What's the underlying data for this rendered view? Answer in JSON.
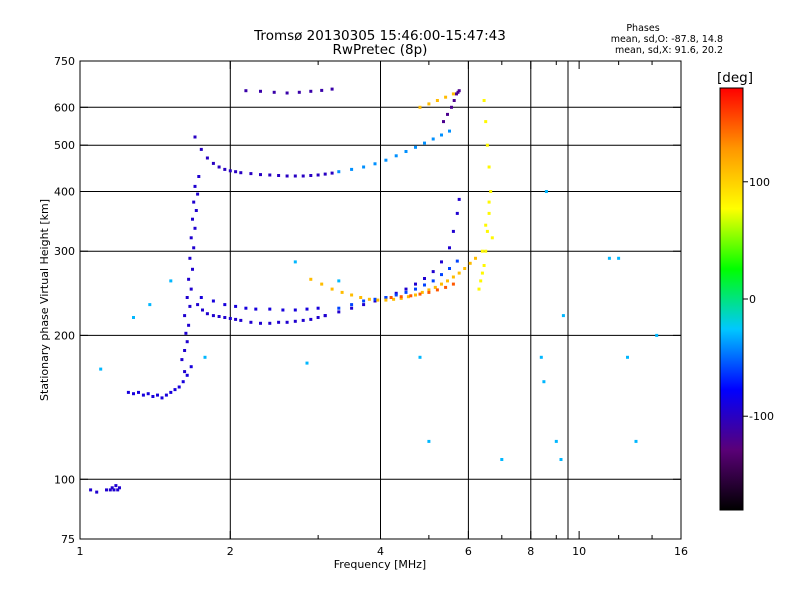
{
  "header": {
    "title_line1": "Tromsø 20130305 15:46:00-15:47:43",
    "title_line2": "RwPretec (8p)",
    "phases_title": "Phases",
    "phases_o": "mean, sd,O: -87.8, 14.8",
    "phases_x": "mean, sd,X:  91.6, 20.2"
  },
  "chart_data": {
    "type": "scatter",
    "xlabel": "Frequency [MHz]",
    "ylabel": "Stationary phase Virtual Height [km]",
    "xscale": "log",
    "yscale": "log",
    "xlim": [
      1,
      16
    ],
    "ylim": [
      75,
      750
    ],
    "x_ticks": [
      1,
      2,
      4,
      6,
      8,
      10,
      16
    ],
    "x_tick_labels": [
      "1",
      "2",
      "4",
      "6",
      "8",
      "10",
      "16"
    ],
    "x_minor_ticks": [
      3,
      5,
      7,
      9,
      12,
      14
    ],
    "y_ticks": [
      75,
      100,
      200,
      300,
      400,
      500,
      600,
      750
    ],
    "y_tick_labels": [
      "75",
      "100",
      "200",
      "300",
      "400",
      "500",
      "600",
      "750"
    ],
    "x_grid": [
      2,
      4,
      6,
      8,
      9.5
    ],
    "y_grid": [
      100,
      200,
      300,
      400,
      500,
      600
    ],
    "grid": true,
    "colorbar": {
      "label": "[deg]",
      "range": [
        -180,
        180
      ],
      "ticks": [
        100,
        0,
        -100
      ],
      "tick_labels": [
        "100",
        "0",
        "-100"
      ],
      "colors": [
        "#000000",
        "#5a0078",
        "#0000ff",
        "#00c8ff",
        "#00ff00",
        "#ffff00",
        "#ff9600",
        "#ff0000"
      ]
    },
    "series": [
      {
        "x": [
          1.05,
          1.08,
          1.13,
          1.15,
          1.16,
          1.17,
          1.18,
          1.19,
          1.2
        ],
        "y": [
          95,
          94,
          95,
          95,
          96,
          95,
          97,
          95,
          96
        ],
        "phase": -95
      },
      {
        "x": [
          1.25,
          1.28,
          1.31,
          1.34,
          1.37,
          1.4,
          1.43,
          1.46,
          1.49,
          1.52,
          1.55,
          1.58,
          1.61,
          1.64,
          1.67
        ],
        "y": [
          152,
          151,
          152,
          150,
          151,
          149,
          150,
          148,
          150,
          152,
          154,
          156,
          160,
          165,
          172
        ],
        "phase": -90
      },
      {
        "x": [
          1.62,
          1.6,
          1.62,
          1.64,
          1.63,
          1.65,
          1.62,
          1.66,
          1.64,
          1.67,
          1.65,
          1.68,
          1.66,
          1.69,
          1.67,
          1.7,
          1.68,
          1.71,
          1.69,
          1.72,
          1.7,
          1.73
        ],
        "y": [
          168,
          178,
          186,
          194,
          202,
          210,
          220,
          230,
          240,
          250,
          262,
          275,
          290,
          305,
          320,
          335,
          350,
          365,
          380,
          395,
          410,
          430
        ],
        "phase": -95
      },
      {
        "x": [
          1.72,
          1.76,
          1.8,
          1.85,
          1.9,
          1.95,
          2.0,
          2.05,
          2.1,
          2.2,
          2.3,
          2.4,
          2.5,
          2.6,
          2.7,
          2.8,
          2.9,
          3.0,
          3.1
        ],
        "y": [
          232,
          226,
          222,
          220,
          219,
          218,
          217,
          216,
          215,
          213,
          212,
          212,
          213,
          213,
          214,
          215,
          216,
          218,
          220
        ],
        "phase": -95
      },
      {
        "x": [
          1.75,
          1.85,
          1.95,
          2.05,
          2.15,
          2.25,
          2.4,
          2.55,
          2.7,
          2.85,
          3.0
        ],
        "y": [
          240,
          236,
          232,
          230,
          228,
          227,
          227,
          226,
          226,
          227,
          228
        ],
        "phase": -90
      },
      {
        "x": [
          3.1,
          3.3,
          3.5,
          3.7,
          3.9,
          4.1,
          4.3,
          4.5,
          4.7,
          4.9,
          5.1,
          5.3,
          5.5,
          5.6,
          5.7,
          5.75
        ],
        "y": [
          220,
          224,
          228,
          232,
          236,
          240,
          245,
          250,
          256,
          263,
          272,
          285,
          305,
          330,
          360,
          385
        ],
        "phase": -95
      },
      {
        "x": [
          3.3,
          3.5,
          3.7,
          3.9,
          4.1,
          4.3,
          4.5,
          4.7,
          4.9,
          5.1,
          5.3,
          5.5,
          5.7
        ],
        "y": [
          228,
          232,
          236,
          238,
          240,
          243,
          246,
          250,
          255,
          260,
          268,
          276,
          286
        ],
        "phase": -60
      },
      {
        "x": [
          2.9,
          3.05,
          3.2,
          3.35,
          3.5,
          3.65,
          3.8,
          3.95,
          4.1,
          4.25,
          4.4,
          4.55,
          4.7,
          4.85,
          5.0,
          5.15,
          5.3,
          5.45,
          5.6,
          5.75,
          5.9,
          6.05,
          6.2
        ],
        "y": [
          262,
          256,
          250,
          246,
          243,
          240,
          238,
          237,
          237,
          238,
          239,
          241,
          243,
          246,
          249,
          252,
          256,
          260,
          265,
          270,
          276,
          283,
          290
        ],
        "phase": 110
      },
      {
        "x": [
          4.2,
          4.4,
          4.6,
          4.8,
          5.0,
          5.2,
          5.4,
          5.6
        ],
        "y": [
          240,
          241,
          242,
          244,
          246,
          249,
          252,
          256
        ],
        "phase": 150
      },
      {
        "x": [
          1.7,
          1.75,
          1.8,
          1.85,
          1.9,
          1.95,
          2.0,
          2.05,
          2.1,
          2.2,
          2.3,
          2.4,
          2.5,
          2.6,
          2.7,
          2.8,
          2.9,
          3.0,
          3.1,
          3.2
        ],
        "y": [
          520,
          490,
          470,
          458,
          450,
          445,
          442,
          440,
          438,
          436,
          434,
          433,
          432,
          431,
          431,
          431,
          432,
          433,
          435,
          437
        ],
        "phase": -100
      },
      {
        "x": [
          3.3,
          3.5,
          3.7,
          3.9,
          4.1,
          4.3,
          4.5,
          4.7,
          4.9,
          5.1,
          5.3,
          5.5
        ],
        "y": [
          440,
          445,
          450,
          457,
          465,
          475,
          485,
          495,
          505,
          515,
          525,
          535
        ],
        "phase": -40
      },
      {
        "x": [
          5.35,
          5.45,
          5.55,
          5.62,
          5.68,
          5.72,
          5.75
        ],
        "y": [
          560,
          580,
          600,
          620,
          640,
          645,
          650
        ],
        "phase": -120
      },
      {
        "x": [
          4.8,
          5.0,
          5.2,
          5.4,
          5.6
        ],
        "y": [
          600,
          610,
          620,
          630,
          640
        ],
        "phase": 110
      },
      {
        "x": [
          2.15,
          2.3,
          2.45,
          2.6,
          2.75,
          2.9,
          3.05,
          3.2
        ],
        "y": [
          650,
          648,
          645,
          643,
          645,
          648,
          651,
          655
        ],
        "phase": -110
      },
      {
        "x": [
          6.45,
          6.5,
          6.55,
          6.6,
          6.65,
          6.6,
          6.55,
          6.5,
          6.45,
          6.4,
          6.35,
          6.3,
          6.4,
          6.5,
          6.6,
          6.7
        ],
        "y": [
          620,
          560,
          500,
          450,
          400,
          360,
          330,
          300,
          280,
          270,
          260,
          250,
          300,
          340,
          380,
          320
        ],
        "phase": 80
      },
      {
        "x": [
          1.1,
          1.28,
          1.38,
          1.52,
          1.78,
          2.7,
          2.85,
          3.3,
          4.8,
          5.0,
          7.0,
          8.4,
          8.5,
          8.6,
          9.0,
          9.2,
          9.3,
          11.5,
          12.0,
          12.5,
          13.0,
          14.3
        ],
        "y": [
          170,
          218,
          232,
          260,
          180,
          285,
          175,
          260,
          180,
          120,
          110,
          180,
          160,
          400,
          120,
          110,
          220,
          290,
          290,
          180,
          120,
          200
        ],
        "phase": -30
      }
    ]
  }
}
